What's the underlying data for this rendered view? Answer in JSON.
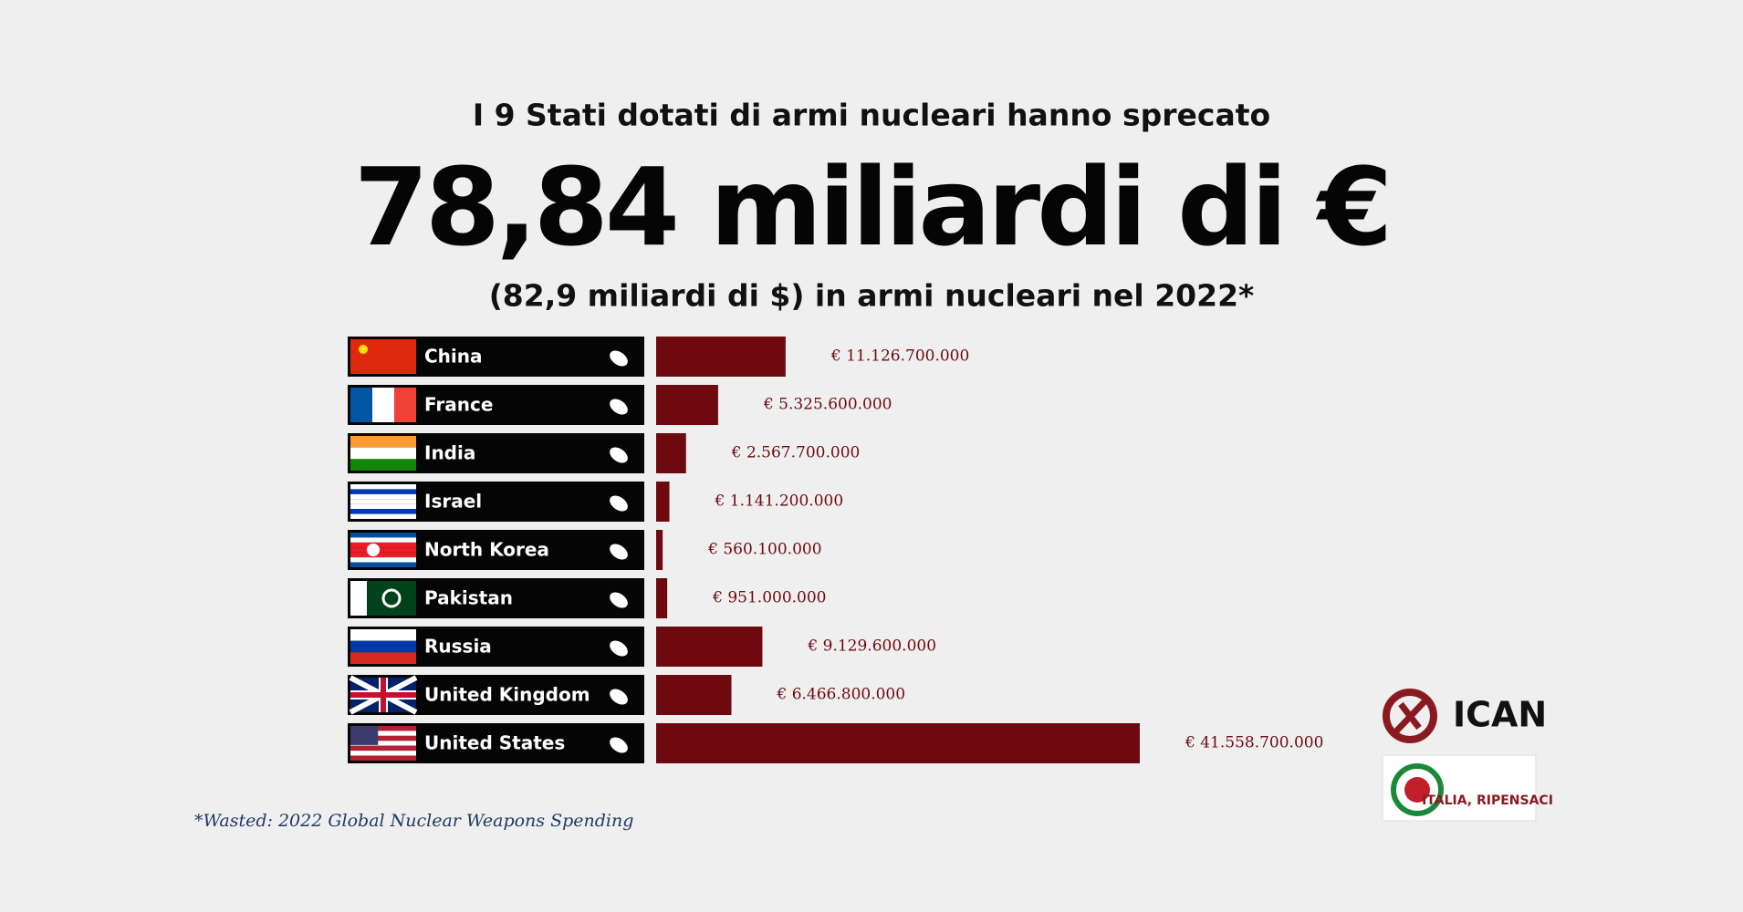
{
  "chart_data": {
    "type": "bar",
    "title": "I 9 Stati dotati di armi nucleari hanno sprecato",
    "headline": "78,84 miliardi di €",
    "subtitle": "(82,9 miliardi di $) in armi nucleari nel 2022*",
    "footnote": "*Wasted: 2022 Global Nuclear Weapons Spending",
    "categories": [
      "China",
      "France",
      "India",
      "Israel",
      "North Korea",
      "Pakistan",
      "Russia",
      "United Kingdom",
      "United States"
    ],
    "values": [
      11126700000,
      5325600000,
      2567700000,
      1141200000,
      560100000,
      951000000,
      9129600000,
      6466800000,
      41558700000
    ],
    "value_labels": [
      "€ 11.126.700.000",
      "€ 5.325.600.000",
      "€ 2.567.700.000",
      "€ 1.141.200.000",
      "€ 560.100.000",
      "€ 951.000.000",
      "€ 9.129.600.000",
      "€ 6.466.800.000",
      "€ 41.558.700.000"
    ],
    "color": "#6e0a0f"
  },
  "logos": {
    "ican": "ICAN",
    "italia": "ITALIA, RIPENSACI"
  }
}
